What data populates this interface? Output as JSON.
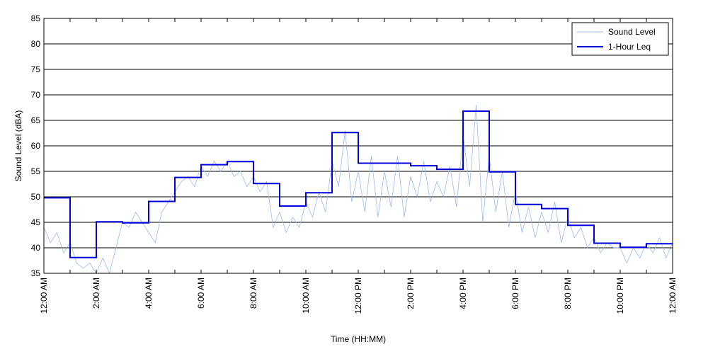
{
  "chart_data": {
    "type": "line",
    "title": "",
    "xlabel": "Time (HH:MM)",
    "ylabel": "Sound Level (dBA)",
    "xlim": [
      0,
      24
    ],
    "ylim": [
      35,
      85
    ],
    "grid": "horizontal",
    "legend_position": "top-right",
    "y_ticks": [
      "35",
      "40",
      "45",
      "50",
      "55",
      "60",
      "65",
      "70",
      "75",
      "80",
      "85"
    ],
    "x_tick_labels": [
      "12:00 AM",
      "2:00 AM",
      "4:00 AM",
      "6:00 AM",
      "8:00 AM",
      "10:00 AM",
      "12:00 PM",
      "2:00 PM",
      "4:00 PM",
      "6:00 PM",
      "8:00 PM",
      "10:00 PM",
      "12:00 AM"
    ],
    "series": [
      {
        "name": "Sound Level",
        "color": "#9db9ef",
        "style": "thin-line",
        "x": [
          0.0,
          0.25,
          0.5,
          0.75,
          1.0,
          1.25,
          1.5,
          1.75,
          2.0,
          2.25,
          2.5,
          2.75,
          3.0,
          3.25,
          3.5,
          3.75,
          4.0,
          4.25,
          4.5,
          4.75,
          5.0,
          5.25,
          5.5,
          5.75,
          6.0,
          6.25,
          6.5,
          6.75,
          7.0,
          7.25,
          7.5,
          7.75,
          8.0,
          8.25,
          8.5,
          8.75,
          9.0,
          9.25,
          9.5,
          9.75,
          10.0,
          10.25,
          10.5,
          10.75,
          11.0,
          11.25,
          11.5,
          11.75,
          12.0,
          12.25,
          12.5,
          12.75,
          13.0,
          13.25,
          13.5,
          13.75,
          14.0,
          14.25,
          14.5,
          14.75,
          15.0,
          15.25,
          15.5,
          15.75,
          16.0,
          16.25,
          16.5,
          16.75,
          17.0,
          17.25,
          17.5,
          17.75,
          18.0,
          18.25,
          18.5,
          18.75,
          19.0,
          19.25,
          19.5,
          19.75,
          20.0,
          20.25,
          20.5,
          20.75,
          21.0,
          21.25,
          21.5,
          21.75,
          22.0,
          22.25,
          22.5,
          22.75,
          23.0,
          23.25,
          23.5,
          23.75,
          24.0
        ],
        "values": [
          44,
          41,
          43,
          39,
          41,
          37,
          36,
          37,
          35,
          38,
          35,
          40,
          45,
          44,
          47,
          45,
          43,
          41,
          47,
          49,
          51,
          53,
          54,
          52,
          56,
          54,
          57,
          55,
          57,
          54,
          55,
          52,
          54,
          51,
          53,
          44,
          47,
          43,
          46,
          44,
          49,
          46,
          51,
          47,
          57,
          52,
          63,
          49,
          55,
          47,
          58,
          46,
          55,
          48,
          58,
          46,
          54,
          50,
          57,
          49,
          53,
          50,
          56,
          48,
          62,
          52,
          68,
          45,
          58,
          47,
          55,
          44,
          51,
          43,
          48,
          42,
          47,
          43,
          49,
          41,
          46,
          42,
          44,
          40,
          42,
          39,
          41,
          40,
          40,
          37,
          40,
          38,
          41,
          39,
          42,
          38,
          41
        ]
      },
      {
        "name": "1-Hour Leq",
        "color": "#0000dd",
        "style": "step",
        "x": [
          0,
          1,
          2,
          3,
          4,
          5,
          6,
          7,
          8,
          9,
          10,
          11,
          12,
          13,
          14,
          15,
          16,
          17,
          18,
          19,
          20,
          21,
          22,
          23
        ],
        "values": [
          49.8,
          38.1,
          45.1,
          44.9,
          49.1,
          53.8,
          56.3,
          56.9,
          52.6,
          48.2,
          50.8,
          62.6,
          56.6,
          56.6,
          56.1,
          55.4,
          66.8,
          54.9,
          48.5,
          47.7,
          44.4,
          40.9,
          40.1,
          40.8
        ]
      }
    ]
  }
}
